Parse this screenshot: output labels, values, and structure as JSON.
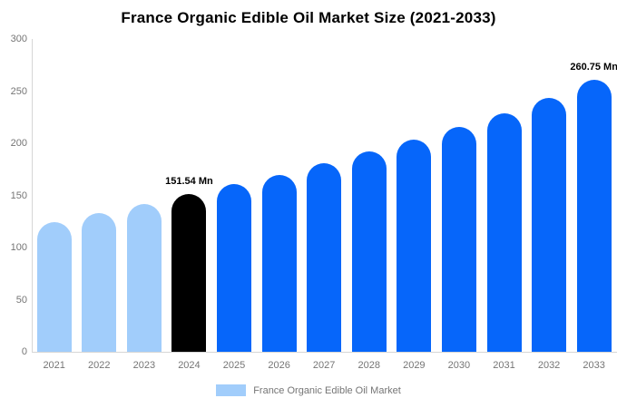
{
  "title": "France Organic Edible Oil Market Size (2021-2033)",
  "legend": {
    "label": "France Organic Edible Oil Market",
    "swatch_color": "#a1cdfb"
  },
  "chart_data": {
    "type": "bar",
    "title": "France Organic Edible Oil Market Size (2021-2033)",
    "series_name": "France Organic Edible Oil Market",
    "unit": "Mn",
    "categories": [
      "2021",
      "2022",
      "2023",
      "2024",
      "2025",
      "2026",
      "2027",
      "2028",
      "2029",
      "2030",
      "2031",
      "2032",
      "2033"
    ],
    "values": [
      124,
      133,
      141.5,
      151.54,
      161,
      169.5,
      181,
      192,
      203.5,
      215.5,
      229,
      243.5,
      260.75
    ],
    "bar_colors": [
      "#a1cdfb",
      "#a1cdfb",
      "#a1cdfb",
      "#000000",
      "#0666fa",
      "#0666fa",
      "#0666fa",
      "#0666fa",
      "#0666fa",
      "#0666fa",
      "#0666fa",
      "#0666fa",
      "#0666fa"
    ],
    "annotations": [
      {
        "category": "2024",
        "text": "151.54 Mn"
      },
      {
        "category": "2033",
        "text": "260.75 Mn"
      }
    ],
    "ylim": [
      0,
      300
    ],
    "yticks": [
      0,
      50,
      100,
      150,
      200,
      250,
      300
    ],
    "grid": false,
    "legend_position": "bottom",
    "axis_color": "#d6d6d6",
    "tick_label_color": "#757575"
  }
}
